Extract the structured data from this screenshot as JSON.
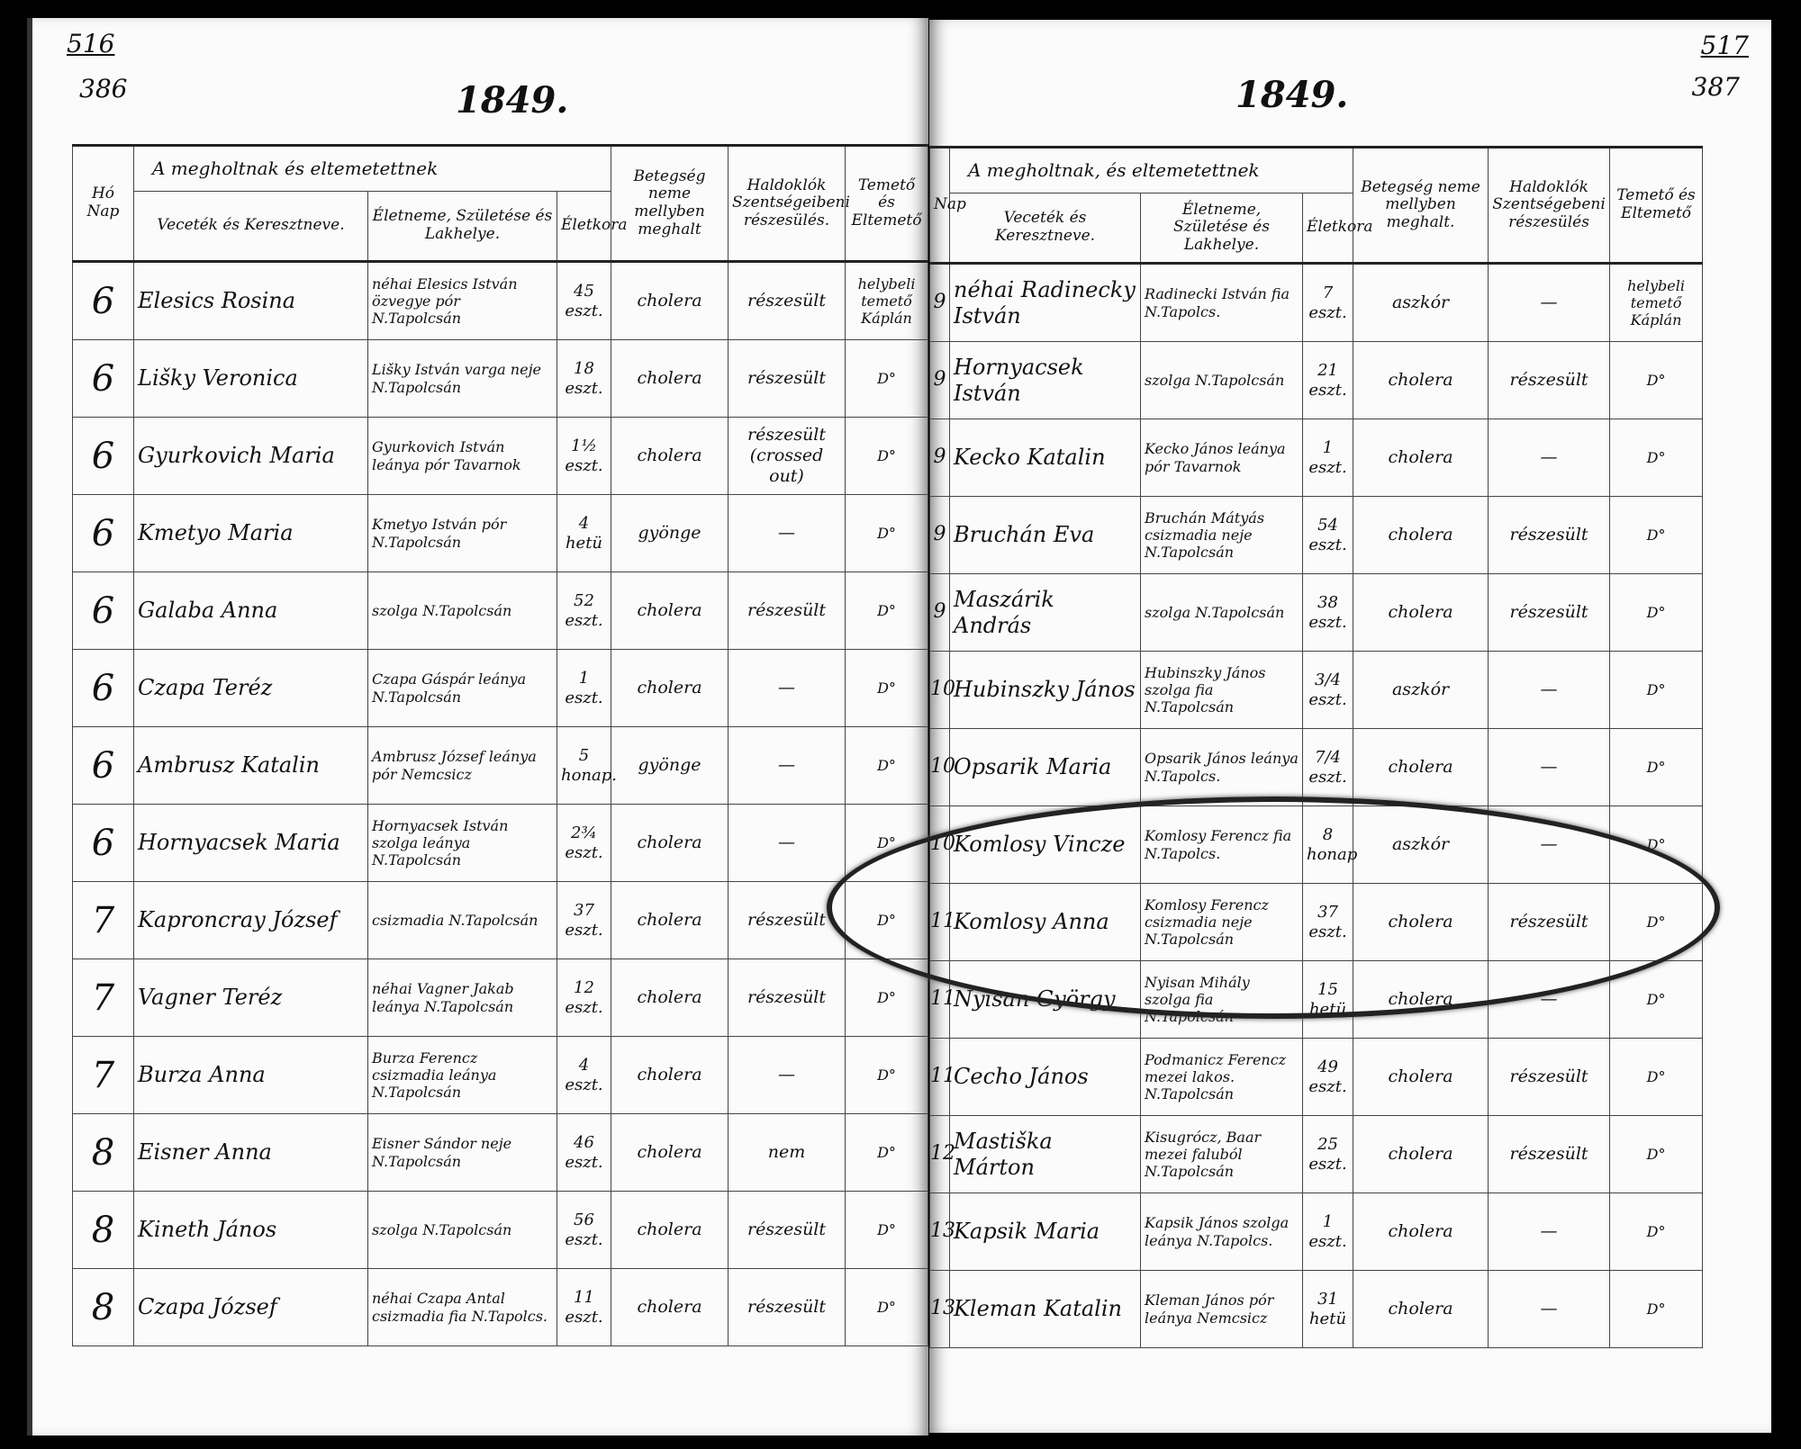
{
  "left_page": {
    "folio": "516",
    "page_number": "386",
    "year": "1849.",
    "headers": {
      "day": "Hó Nap",
      "group": "A megholtnak és eltemetettnek",
      "name": "Veceték és Keresztneve.",
      "residence": "Életneme, Születése és Lakhelye.",
      "age": "Életkora",
      "disease": "Betegség neme mellyben meghalt",
      "sacraments": "Haldoklók Szentségeibeni részesülés.",
      "burier": "Temető és Eltemető"
    },
    "rows": [
      {
        "day": "6",
        "name": "Elesics Rosina",
        "residence": "néhai Elesics István özvegye pór N.Tapolcsán",
        "age": "45 eszt.",
        "disease": "cholera",
        "sacraments": "részesült",
        "burier": "helybeli temető Káplán"
      },
      {
        "day": "6",
        "name": "Lišky Veronica",
        "residence": "Lišky István varga neje N.Tapolcsán",
        "age": "18 eszt.",
        "disease": "cholera",
        "sacraments": "részesült",
        "burier": "D°"
      },
      {
        "day": "6",
        "name": "Gyurkovich Maria",
        "residence": "Gyurkovich István leánya pór Tavarnok",
        "age": "1½ eszt.",
        "disease": "cholera",
        "sacraments": "részesült (crossed out)",
        "burier": "D°"
      },
      {
        "day": "6",
        "name": "Kmetyo Maria",
        "residence": "Kmetyo István pór N.Tapolcsán",
        "age": "4 hetü",
        "disease": "gyönge",
        "sacraments": "—",
        "burier": "D°"
      },
      {
        "day": "6",
        "name": "Galaba Anna",
        "residence": "szolga N.Tapolcsán",
        "age": "52 eszt.",
        "disease": "cholera",
        "sacraments": "részesült",
        "burier": "D°"
      },
      {
        "day": "6",
        "name": "Czapa Teréz",
        "residence": "Czapa Gáspár leánya N.Tapolcsán",
        "age": "1 eszt.",
        "disease": "cholera",
        "sacraments": "—",
        "burier": "D°"
      },
      {
        "day": "6",
        "name": "Ambrusz Katalin",
        "residence": "Ambrusz József leánya pór Nemcsicz",
        "age": "5 honap.",
        "disease": "gyönge",
        "sacraments": "—",
        "burier": "D°"
      },
      {
        "day": "6",
        "name": "Hornyacsek Maria",
        "residence": "Hornyacsek István szolga leánya N.Tapolcsán",
        "age": "2¾ eszt.",
        "disease": "cholera",
        "sacraments": "—",
        "burier": "D°"
      },
      {
        "day": "7",
        "name": "Kaproncray József",
        "residence": "csizmadia N.Tapolcsán",
        "age": "37 eszt.",
        "disease": "cholera",
        "sacraments": "részesült",
        "burier": "D°"
      },
      {
        "day": "7",
        "name": "Vagner Teréz",
        "residence": "néhai Vagner Jakab leánya N.Tapolcsán",
        "age": "12 eszt.",
        "disease": "cholera",
        "sacraments": "részesült",
        "burier": "D°"
      },
      {
        "day": "7",
        "name": "Burza Anna",
        "residence": "Burza Ferencz csizmadia leánya N.Tapolcsán",
        "age": "4 eszt.",
        "disease": "cholera",
        "sacraments": "—",
        "burier": "D°"
      },
      {
        "day": "8",
        "name": "Eisner Anna",
        "residence": "Eisner Sándor neje N.Tapolcsán",
        "age": "46 eszt.",
        "disease": "cholera",
        "sacraments": "nem",
        "burier": "D°"
      },
      {
        "day": "8",
        "name": "Kineth János",
        "residence": "szolga N.Tapolcsán",
        "age": "56 eszt.",
        "disease": "cholera",
        "sacraments": "részesült",
        "burier": "D°"
      },
      {
        "day": "8",
        "name": "Czapa József",
        "residence": "néhai Czapa Antal csizmadia fia N.Tapolcs.",
        "age": "11 eszt.",
        "disease": "cholera",
        "sacraments": "részesült",
        "burier": "D°"
      }
    ]
  },
  "right_page": {
    "folio": "517",
    "page_number": "387",
    "year": "1849.",
    "headers": {
      "day": "Nap",
      "group": "A megholtnak, és eltemetettnek",
      "name": "Veceték és Keresztneve.",
      "residence": "Életneme, Születése és Lakhelye.",
      "age": "Életkora",
      "disease": "Betegség neme mellyben meghalt.",
      "sacraments": "Haldoklók Szentségebeni részesülés",
      "burier": "Temető és Eltemető"
    },
    "rows": [
      {
        "day": "9",
        "name": "néhai Radinecky István",
        "residence": "Radinecki István fia N.Tapolcs.",
        "age": "7 eszt.",
        "disease": "aszkór",
        "sacraments": "—",
        "burier": "helybeli temető Káplán"
      },
      {
        "day": "9",
        "name": "Hornyacsek István",
        "residence": "szolga N.Tapolcsán",
        "age": "21 eszt.",
        "disease": "cholera",
        "sacraments": "részesült",
        "burier": "D°"
      },
      {
        "day": "9",
        "name": "Kecko Katalin",
        "residence": "Kecko János leánya pór Tavarnok",
        "age": "1 eszt.",
        "disease": "cholera",
        "sacraments": "—",
        "burier": "D°"
      },
      {
        "day": "9",
        "name": "Bruchán Eva",
        "residence": "Bruchán Mátyás csizmadia neje N.Tapolcsán",
        "age": "54 eszt.",
        "disease": "cholera",
        "sacraments": "részesült",
        "burier": "D°"
      },
      {
        "day": "9",
        "name": "Maszárik András",
        "residence": "szolga N.Tapolcsán",
        "age": "38 eszt.",
        "disease": "cholera",
        "sacraments": "részesült",
        "burier": "D°"
      },
      {
        "day": "10",
        "name": "Hubinszky János",
        "residence": "Hubinszky János szolga fia N.Tapolcsán",
        "age": "3/4 eszt.",
        "disease": "aszkór",
        "sacraments": "—",
        "burier": "D°"
      },
      {
        "day": "10",
        "name": "Opsarik Maria",
        "residence": "Opsarik János leánya N.Tapolcs.",
        "age": "7/4 eszt.",
        "disease": "cholera",
        "sacraments": "—",
        "burier": "D°"
      },
      {
        "day": "10",
        "name": "Komlosy Vincze",
        "residence": "Komlosy Ferencz fia N.Tapolcs.",
        "age": "8 honap",
        "disease": "aszkór",
        "sacraments": "—",
        "burier": "D°"
      },
      {
        "day": "11",
        "name": "Komlosy Anna",
        "residence": "Komlosy Ferencz csizmadia neje N.Tapolcsán",
        "age": "37 eszt.",
        "disease": "cholera",
        "sacraments": "részesült",
        "burier": "D°"
      },
      {
        "day": "11",
        "name": "Nyisan György",
        "residence": "Nyisan Mihály szolga fia N.Tapolcsán",
        "age": "15 hetü",
        "disease": "cholera",
        "sacraments": "—",
        "burier": "D°"
      },
      {
        "day": "11",
        "name": "Cecho János",
        "residence": "Podmanicz Ferencz mezei lakos. N.Tapolcsán",
        "age": "49 eszt.",
        "disease": "cholera",
        "sacraments": "részesült",
        "burier": "D°"
      },
      {
        "day": "12",
        "name": "Mastiška Márton",
        "residence": "Kisugrócz, Baar mezei faluból N.Tapolcsán",
        "age": "25 eszt.",
        "disease": "cholera",
        "sacraments": "részesült",
        "burier": "D°"
      },
      {
        "day": "13",
        "name": "Kapsik Maria",
        "residence": "Kapsik János szolga leánya N.Tapolcs.",
        "age": "1 eszt.",
        "disease": "cholera",
        "sacraments": "—",
        "burier": "D°"
      },
      {
        "day": "13",
        "name": "Kleman Katalin",
        "residence": "Kleman János pór leánya Nemcsicz",
        "age": "31 hetü",
        "disease": "cholera",
        "sacraments": "—",
        "burier": "D°"
      }
    ]
  },
  "annotation": {
    "type": "ellipse",
    "highlights": [
      "Komlosy Vincze",
      "Komlosy Anna"
    ],
    "color": "#222222"
  }
}
